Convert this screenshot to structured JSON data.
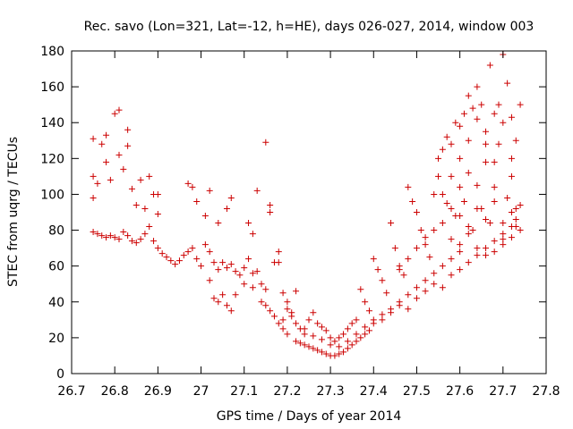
{
  "chart_data": {
    "type": "scatter",
    "title": "Rec. savo (Lon=321, Lat=-12, h=HE), days 026-027, 2014, window 003",
    "xlabel": "GPS time / Days of year 2014",
    "ylabel": "STEC from uqrg / TECUs",
    "xlim": [
      26.7,
      27.8
    ],
    "ylim": [
      0,
      180
    ],
    "xticks": [
      "26.7",
      "26.8",
      "26.9",
      "27",
      "27.1",
      "27.2",
      "27.3",
      "27.4",
      "27.5",
      "27.6",
      "27.7",
      "27.8"
    ],
    "yticks": [
      "0",
      "20",
      "40",
      "60",
      "80",
      "100",
      "120",
      "140",
      "160",
      "180"
    ],
    "grid": false,
    "legend": "none",
    "marker": "plus",
    "color": "#cc0000",
    "points": [
      [
        26.75,
        131
      ],
      [
        26.75,
        110
      ],
      [
        26.75,
        98
      ],
      [
        26.76,
        106
      ],
      [
        26.77,
        128
      ],
      [
        26.78,
        133
      ],
      [
        26.78,
        118
      ],
      [
        26.79,
        108
      ],
      [
        26.8,
        145
      ],
      [
        26.81,
        147
      ],
      [
        26.81,
        122
      ],
      [
        26.82,
        114
      ],
      [
        26.83,
        136
      ],
      [
        26.83,
        127
      ],
      [
        26.84,
        103
      ],
      [
        26.85,
        94
      ],
      [
        26.86,
        108
      ],
      [
        26.87,
        92
      ],
      [
        26.88,
        110
      ],
      [
        26.89,
        100
      ],
      [
        26.9,
        89
      ],
      [
        26.9,
        100
      ],
      [
        26.75,
        79
      ],
      [
        26.76,
        78
      ],
      [
        26.77,
        77
      ],
      [
        26.78,
        76
      ],
      [
        26.79,
        77
      ],
      [
        26.8,
        76
      ],
      [
        26.81,
        75
      ],
      [
        26.82,
        79
      ],
      [
        26.83,
        77
      ],
      [
        26.84,
        74
      ],
      [
        26.85,
        73
      ],
      [
        26.86,
        75
      ],
      [
        26.87,
        78
      ],
      [
        26.88,
        82
      ],
      [
        26.89,
        74
      ],
      [
        26.9,
        70
      ],
      [
        26.91,
        67
      ],
      [
        26.92,
        65
      ],
      [
        26.93,
        63
      ],
      [
        26.94,
        61
      ],
      [
        26.95,
        63
      ],
      [
        26.96,
        66
      ],
      [
        26.97,
        68
      ],
      [
        26.98,
        70
      ],
      [
        26.99,
        64
      ],
      [
        27.0,
        60
      ],
      [
        27.01,
        72
      ],
      [
        27.02,
        68
      ],
      [
        27.03,
        62
      ],
      [
        27.04,
        58
      ],
      [
        27.05,
        62
      ],
      [
        27.06,
        59
      ],
      [
        27.07,
        61
      ],
      [
        27.08,
        57
      ],
      [
        27.09,
        55
      ],
      [
        27.1,
        59
      ],
      [
        27.11,
        64
      ],
      [
        27.12,
        56
      ],
      [
        27.13,
        57
      ],
      [
        27.14,
        50
      ],
      [
        27.15,
        47
      ],
      [
        26.97,
        106
      ],
      [
        26.98,
        104
      ],
      [
        26.99,
        96
      ],
      [
        27.01,
        88
      ],
      [
        27.02,
        102
      ],
      [
        27.04,
        84
      ],
      [
        27.06,
        92
      ],
      [
        27.07,
        98
      ],
      [
        27.11,
        84
      ],
      [
        27.12,
        78
      ],
      [
        27.13,
        102
      ],
      [
        27.15,
        129
      ],
      [
        27.16,
        94
      ],
      [
        27.16,
        90
      ],
      [
        27.18,
        68
      ],
      [
        27.02,
        52
      ],
      [
        27.03,
        42
      ],
      [
        27.04,
        40
      ],
      [
        27.05,
        44
      ],
      [
        27.06,
        38
      ],
      [
        27.07,
        35
      ],
      [
        27.08,
        44
      ],
      [
        27.1,
        50
      ],
      [
        27.12,
        48
      ],
      [
        27.14,
        40
      ],
      [
        27.15,
        38
      ],
      [
        27.16,
        35
      ],
      [
        27.17,
        32
      ],
      [
        27.18,
        28
      ],
      [
        27.19,
        25
      ],
      [
        27.2,
        22
      ],
      [
        27.19,
        30
      ],
      [
        27.2,
        36
      ],
      [
        27.21,
        34
      ],
      [
        27.22,
        46
      ],
      [
        27.17,
        62
      ],
      [
        27.18,
        62
      ],
      [
        27.19,
        45
      ],
      [
        27.2,
        40
      ],
      [
        27.21,
        32
      ],
      [
        27.22,
        28
      ],
      [
        27.23,
        25
      ],
      [
        27.24,
        22
      ],
      [
        27.25,
        30
      ],
      [
        27.26,
        34
      ],
      [
        27.27,
        28
      ],
      [
        27.28,
        26
      ],
      [
        27.29,
        24
      ],
      [
        27.3,
        20
      ],
      [
        27.31,
        18
      ],
      [
        27.32,
        20
      ],
      [
        27.33,
        22
      ],
      [
        27.34,
        25
      ],
      [
        27.35,
        28
      ],
      [
        27.36,
        30
      ],
      [
        27.22,
        18
      ],
      [
        27.23,
        17
      ],
      [
        27.24,
        16
      ],
      [
        27.25,
        15
      ],
      [
        27.26,
        14
      ],
      [
        27.27,
        13
      ],
      [
        27.28,
        12
      ],
      [
        27.29,
        11
      ],
      [
        27.3,
        10
      ],
      [
        27.31,
        10
      ],
      [
        27.32,
        11
      ],
      [
        27.33,
        12
      ],
      [
        27.34,
        14
      ],
      [
        27.35,
        16
      ],
      [
        27.36,
        18
      ],
      [
        27.37,
        20
      ],
      [
        27.38,
        22
      ],
      [
        27.39,
        24
      ],
      [
        27.24,
        25
      ],
      [
        27.26,
        21
      ],
      [
        27.28,
        19
      ],
      [
        27.3,
        16
      ],
      [
        27.32,
        15
      ],
      [
        27.34,
        18
      ],
      [
        27.36,
        22
      ],
      [
        27.38,
        26
      ],
      [
        27.4,
        30
      ],
      [
        27.42,
        33
      ],
      [
        27.44,
        36
      ],
      [
        27.46,
        40
      ],
      [
        27.48,
        44
      ],
      [
        27.5,
        48
      ],
      [
        27.52,
        52
      ],
      [
        27.54,
        56
      ],
      [
        27.56,
        60
      ],
      [
        27.58,
        64
      ],
      [
        27.6,
        68
      ],
      [
        27.37,
        47
      ],
      [
        27.38,
        40
      ],
      [
        27.39,
        35
      ],
      [
        27.4,
        64
      ],
      [
        27.41,
        58
      ],
      [
        27.42,
        52
      ],
      [
        27.43,
        45
      ],
      [
        27.44,
        84
      ],
      [
        27.45,
        70
      ],
      [
        27.46,
        60
      ],
      [
        27.47,
        55
      ],
      [
        27.48,
        104
      ],
      [
        27.49,
        96
      ],
      [
        27.5,
        90
      ],
      [
        27.51,
        80
      ],
      [
        27.52,
        72
      ],
      [
        27.53,
        65
      ],
      [
        27.54,
        100
      ],
      [
        27.55,
        110
      ],
      [
        27.4,
        28
      ],
      [
        27.42,
        30
      ],
      [
        27.44,
        34
      ],
      [
        27.46,
        38
      ],
      [
        27.48,
        36
      ],
      [
        27.5,
        42
      ],
      [
        27.52,
        46
      ],
      [
        27.54,
        50
      ],
      [
        27.56,
        48
      ],
      [
        27.58,
        55
      ],
      [
        27.6,
        58
      ],
      [
        27.62,
        62
      ],
      [
        27.64,
        66
      ],
      [
        27.66,
        70
      ],
      [
        27.68,
        74
      ],
      [
        27.7,
        78
      ],
      [
        27.72,
        82
      ],
      [
        27.73,
        86
      ],
      [
        27.55,
        120
      ],
      [
        27.56,
        125
      ],
      [
        27.57,
        132
      ],
      [
        27.58,
        128
      ],
      [
        27.59,
        140
      ],
      [
        27.6,
        138
      ],
      [
        27.61,
        145
      ],
      [
        27.62,
        155
      ],
      [
        27.63,
        148
      ],
      [
        27.64,
        160
      ],
      [
        27.65,
        150
      ],
      [
        27.66,
        135
      ],
      [
        27.67,
        172
      ],
      [
        27.68,
        145
      ],
      [
        27.69,
        150
      ],
      [
        27.7,
        178
      ],
      [
        27.71,
        162
      ],
      [
        27.72,
        143
      ],
      [
        27.73,
        130
      ],
      [
        27.74,
        150
      ],
      [
        27.56,
        100
      ],
      [
        27.57,
        95
      ],
      [
        27.58,
        110
      ],
      [
        27.59,
        88
      ],
      [
        27.6,
        120
      ],
      [
        27.61,
        96
      ],
      [
        27.62,
        112
      ],
      [
        27.63,
        80
      ],
      [
        27.64,
        105
      ],
      [
        27.65,
        92
      ],
      [
        27.66,
        118
      ],
      [
        27.67,
        84
      ],
      [
        27.68,
        104
      ],
      [
        27.69,
        128
      ],
      [
        27.7,
        75
      ],
      [
        27.71,
        98
      ],
      [
        27.72,
        110
      ],
      [
        27.73,
        92
      ],
      [
        27.74,
        80
      ],
      [
        27.58,
        75
      ],
      [
        27.6,
        72
      ],
      [
        27.62,
        78
      ],
      [
        27.64,
        70
      ],
      [
        27.66,
        66
      ],
      [
        27.68,
        68
      ],
      [
        27.7,
        72
      ],
      [
        27.72,
        76
      ],
      [
        27.73,
        82
      ],
      [
        27.6,
        88
      ],
      [
        27.62,
        82
      ],
      [
        27.64,
        92
      ],
      [
        27.66,
        86
      ],
      [
        27.68,
        96
      ],
      [
        27.7,
        84
      ],
      [
        27.72,
        90
      ],
      [
        27.74,
        94
      ],
      [
        27.46,
        58
      ],
      [
        27.48,
        64
      ],
      [
        27.5,
        70
      ],
      [
        27.52,
        76
      ],
      [
        27.54,
        80
      ],
      [
        27.56,
        84
      ],
      [
        27.58,
        92
      ],
      [
        27.6,
        104
      ],
      [
        27.62,
        130
      ],
      [
        27.64,
        142
      ],
      [
        27.66,
        128
      ],
      [
        27.68,
        118
      ],
      [
        27.7,
        140
      ],
      [
        27.72,
        120
      ]
    ]
  }
}
